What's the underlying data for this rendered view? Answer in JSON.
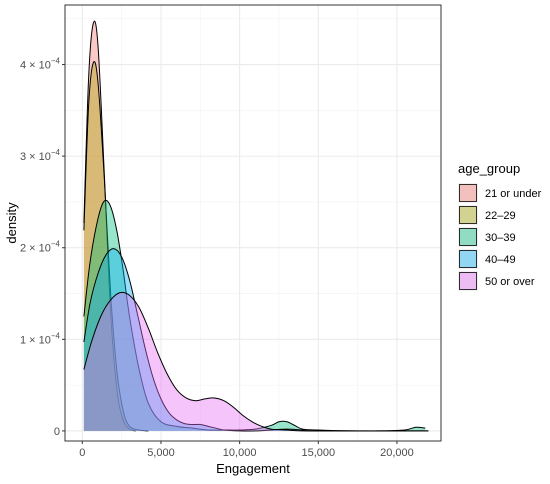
{
  "chart_data": {
    "type": "area",
    "subtype": "density",
    "xlabel": "Engagement",
    "ylabel": "density",
    "xlim": [
      -1100,
      22800
    ],
    "ylim": [
      -1.1e-05,
      0.000465
    ],
    "x_ticks": [
      {
        "value": 0,
        "label": "0"
      },
      {
        "value": 5000,
        "label": "5,000"
      },
      {
        "value": 10000,
        "label": "10,000"
      },
      {
        "value": 15000,
        "label": "15,000"
      },
      {
        "value": 20000,
        "label": "20,000"
      }
    ],
    "y_ticks": [
      {
        "value": 0,
        "base": "0",
        "exp": ""
      },
      {
        "value": 0.0001,
        "base": "1 × 10",
        "exp": "−4"
      },
      {
        "value": 0.0002,
        "base": "2 × 10",
        "exp": "−4"
      },
      {
        "value": 0.0003,
        "base": "3 × 10",
        "exp": "−4"
      },
      {
        "value": 0.0004,
        "base": "4 × 10",
        "exp": "−4"
      }
    ],
    "grid": true,
    "fill_opacity": 0.4,
    "legend": {
      "title": "age_group",
      "position": "right"
    },
    "series": [
      {
        "name": "21 or under",
        "color": "#F8766D",
        "points": [
          [
            100,
            0.000227
          ],
          [
            400,
            0.000385
          ],
          [
            700,
            0.000445
          ],
          [
            1000,
            0.00042
          ],
          [
            1400,
            0.00028
          ],
          [
            1800,
            0.00013
          ],
          [
            2200,
            4.5e-05
          ],
          [
            2600,
            1.2e-05
          ],
          [
            3000,
            2e-06
          ],
          [
            3400,
            0
          ]
        ]
      },
      {
        "name": "22–29",
        "color": "#A3A500",
        "points": [
          [
            100,
            0.000219
          ],
          [
            400,
            0.000355
          ],
          [
            700,
            0.000402
          ],
          [
            1000,
            0.00038
          ],
          [
            1400,
            0.000275
          ],
          [
            1800,
            0.00015
          ],
          [
            2200,
            6.5e-05
          ],
          [
            2600,
            2.2e-05
          ],
          [
            3000,
            5e-06
          ],
          [
            3600,
            1e-06
          ],
          [
            4200,
            0
          ]
        ]
      },
      {
        "name": "30–39",
        "color": "#00BF7D",
        "points": [
          [
            100,
            0.000125
          ],
          [
            500,
            0.000185
          ],
          [
            1000,
            0.000232
          ],
          [
            1400,
            0.000251
          ],
          [
            1800,
            0.000245
          ],
          [
            2200,
            0.000218
          ],
          [
            2600,
            0.000175
          ],
          [
            3000,
            0.000125
          ],
          [
            3600,
            6.8e-05
          ],
          [
            4200,
            3e-05
          ],
          [
            5000,
            1e-05
          ],
          [
            6000,
            5e-06
          ],
          [
            7000,
            3e-06
          ],
          [
            8000,
            1e-06
          ],
          [
            9000,
            1e-06
          ],
          [
            10000,
            1e-06
          ],
          [
            11000,
            2e-06
          ],
          [
            12000,
            6e-06
          ],
          [
            12500,
            1e-05
          ],
          [
            13000,
            1e-05
          ],
          [
            13500,
            6e-06
          ],
          [
            14000,
            2e-06
          ],
          [
            15000,
            1e-06
          ],
          [
            17000,
            0
          ],
          [
            19000,
            0
          ],
          [
            20500,
            1e-06
          ],
          [
            21200,
            4e-06
          ],
          [
            21800,
            3e-06
          ]
        ]
      },
      {
        "name": "40–49",
        "color": "#00B0F6",
        "points": [
          [
            100,
            9.7e-05
          ],
          [
            500,
            0.00014
          ],
          [
            1000,
            0.000172
          ],
          [
            1500,
            0.000192
          ],
          [
            2000,
            0.000199
          ],
          [
            2500,
            0.00019
          ],
          [
            3000,
            0.000165
          ],
          [
            3500,
            0.000128
          ],
          [
            4000,
            9e-05
          ],
          [
            4500,
            5.8e-05
          ],
          [
            5000,
            3.5e-05
          ],
          [
            5500,
            2e-05
          ],
          [
            6000,
            1.2e-05
          ],
          [
            6500,
            8e-06
          ],
          [
            7000,
            7e-06
          ],
          [
            7500,
            7e-06
          ],
          [
            8000,
            5e-06
          ],
          [
            8500,
            3e-06
          ],
          [
            9000,
            1e-06
          ],
          [
            10000,
            0
          ],
          [
            11000,
            0
          ],
          [
            12000,
            1e-06
          ],
          [
            13000,
            2e-06
          ],
          [
            14000,
            1e-06
          ],
          [
            15000,
            0
          ],
          [
            22000,
            0
          ]
        ]
      },
      {
        "name": "50 or over",
        "color": "#E76BF3",
        "points": [
          [
            100,
            6.7e-05
          ],
          [
            600,
            9.8e-05
          ],
          [
            1200,
            0.000126
          ],
          [
            1800,
            0.000143
          ],
          [
            2400,
            0.000151
          ],
          [
            3000,
            0.000148
          ],
          [
            3600,
            0.000135
          ],
          [
            4200,
            0.000112
          ],
          [
            4800,
            8.5e-05
          ],
          [
            5400,
            6.2e-05
          ],
          [
            6000,
            4.5e-05
          ],
          [
            6600,
            3.6e-05
          ],
          [
            7200,
            3.3e-05
          ],
          [
            7800,
            3.5e-05
          ],
          [
            8400,
            3.6e-05
          ],
          [
            9000,
            3.3e-05
          ],
          [
            9600,
            2.6e-05
          ],
          [
            10200,
            1.7e-05
          ],
          [
            10800,
            1e-05
          ],
          [
            11400,
            5e-06
          ],
          [
            12000,
            2e-06
          ],
          [
            13000,
            1e-06
          ],
          [
            14000,
            0
          ],
          [
            16000,
            0
          ],
          [
            22000,
            0
          ]
        ]
      }
    ]
  }
}
